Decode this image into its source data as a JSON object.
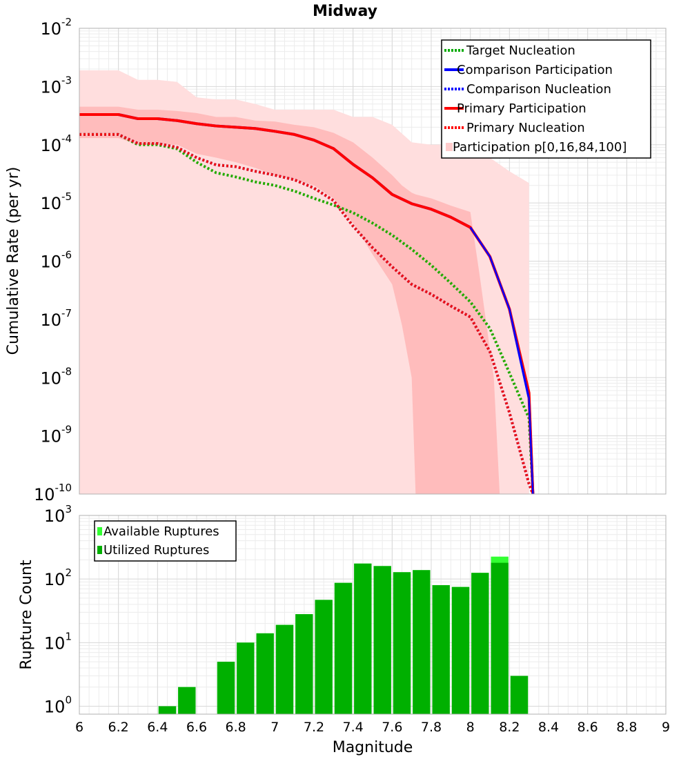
{
  "chart_data": [
    {
      "type": "line",
      "title": "Midway",
      "xlabel": "",
      "ylabel": "Cumulative Rate (per yr)",
      "xlim": [
        6,
        9
      ],
      "ylim": [
        1e-10,
        0.01
      ],
      "yscale": "log",
      "y_tick_labels": [
        {
          "base": "10",
          "exp": "-10",
          "value": 1e-10
        },
        {
          "base": "10",
          "exp": "-9",
          "value": 1e-09
        },
        {
          "base": "10",
          "exp": "-8",
          "value": 1e-08
        },
        {
          "base": "10",
          "exp": "-7",
          "value": 1e-07
        },
        {
          "base": "10",
          "exp": "-6",
          "value": 1e-06
        },
        {
          "base": "10",
          "exp": "-5",
          "value": 1e-05
        },
        {
          "base": "10",
          "exp": "-4",
          "value": 0.0001
        },
        {
          "base": "10",
          "exp": "-3",
          "value": 0.001
        },
        {
          "base": "10",
          "exp": "-2",
          "value": 0.01
        }
      ],
      "grid": true,
      "legend_position": "top-right",
      "legend": [
        {
          "label": "Target Nucleation",
          "color": "#00aa00",
          "style": "dotted"
        },
        {
          "label": "Comparison Participation",
          "color": "#0000ff",
          "style": "solid"
        },
        {
          "label": "Comparison Nucleation",
          "color": "#0000ff",
          "style": "dotted"
        },
        {
          "label": "Primary Participation",
          "color": "#ff0000",
          "style": "solid"
        },
        {
          "label": "Primary Nucleation",
          "color": "#ff0000",
          "style": "dotted"
        },
        {
          "label": "Participation p[0,16,84,100]",
          "color": "#ffcccc",
          "style": "fill"
        }
      ],
      "bands": [
        {
          "name": "p0-p100",
          "color": "#ffdede",
          "x": [
            6.0,
            6.2,
            6.3,
            6.4,
            6.5,
            6.6,
            6.7,
            6.8,
            6.9,
            7.0,
            7.1,
            7.2,
            7.3,
            7.4,
            7.5,
            7.6,
            7.7,
            7.8,
            7.9,
            8.0,
            8.1,
            8.2,
            8.3
          ],
          "lower": [
            1e-10,
            1e-10,
            1e-10,
            1e-10,
            1e-10,
            1e-10,
            1e-10,
            1e-10,
            1e-10,
            1e-10,
            1e-10,
            1e-10,
            1e-10,
            1e-10,
            1e-10,
            1e-10,
            1e-10,
            1e-10,
            1e-10,
            1e-10,
            1e-10,
            1e-10,
            1e-10
          ],
          "upper": [
            0.0019,
            0.0019,
            0.0013,
            0.0013,
            0.0012,
            0.00065,
            0.0006,
            0.0006,
            0.0005,
            0.0004,
            0.0004,
            0.0004,
            0.0004,
            0.0003,
            0.0003,
            0.00022,
            0.00011,
            0.0001,
            0.0001,
            0.0001,
            6e-05,
            3.5e-05,
            2.2e-05
          ]
        },
        {
          "name": "p16-p84",
          "color": "#ffbcbc",
          "x": [
            6.0,
            6.2,
            6.3,
            6.4,
            6.5,
            6.6,
            6.7,
            6.8,
            6.9,
            7.0,
            7.1,
            7.2,
            7.3,
            7.4,
            7.5,
            7.6,
            7.65,
            7.7,
            7.72,
            7.8,
            7.9,
            8.0,
            8.05,
            8.12,
            8.15
          ],
          "lower": [
            0.00013,
            0.00013,
            0.0001,
            0.0001,
            0.0001,
            7e-05,
            6e-05,
            5e-05,
            4e-05,
            3e-05,
            2.5e-05,
            2e-05,
            1.2e-05,
            4.5e-06,
            1.3e-06,
            4e-07,
            8e-08,
            1e-08,
            1e-10,
            1e-10,
            1e-10,
            1e-10,
            1e-10,
            1e-10,
            1e-10
          ],
          "upper": [
            0.00045,
            0.00045,
            0.0004,
            0.0004,
            0.00038,
            0.00035,
            0.0003,
            0.0003,
            0.00026,
            0.00025,
            0.00022,
            0.0002,
            0.00016,
            0.00011,
            6e-05,
            3e-05,
            2e-05,
            1.5e-05,
            1.4e-05,
            1.2e-05,
            9e-06,
            7e-06,
            5e-07,
            1e-08,
            1e-10
          ]
        }
      ],
      "series": [
        {
          "name": "Target Nucleation",
          "color": "#22aa00",
          "style": "dotted",
          "x": [
            6.0,
            6.2,
            6.3,
            6.4,
            6.5,
            6.6,
            6.7,
            6.8,
            6.9,
            7.0,
            7.1,
            7.2,
            7.3,
            7.4,
            7.5,
            7.6,
            7.7,
            7.8,
            7.9,
            8.0,
            8.1,
            8.2,
            8.3,
            8.32
          ],
          "y": [
            0.00015,
            0.00015,
            0.0001,
            0.0001,
            8.5e-05,
            5e-05,
            3.3e-05,
            2.8e-05,
            2.3e-05,
            2e-05,
            1.6e-05,
            1.2e-05,
            9.2e-06,
            6.8e-06,
            4.5e-06,
            2.8e-06,
            1.6e-06,
            8.5e-07,
            4.2e-07,
            2e-07,
            7e-08,
            1.2e-08,
            2e-09,
            1e-10
          ]
        },
        {
          "name": "Comparison Participation",
          "color": "#0000ff",
          "style": "solid",
          "x": [
            6.0,
            6.2,
            6.3,
            6.4,
            6.5,
            6.6,
            6.7,
            6.8,
            6.9,
            7.0,
            7.1,
            7.2,
            7.3,
            7.4,
            7.5,
            7.6,
            7.7,
            7.8,
            7.9,
            8.0,
            8.1,
            8.2,
            8.3,
            8.32
          ],
          "y": [
            0.00033,
            0.00033,
            0.00028,
            0.00028,
            0.00026,
            0.00023,
            0.00021,
            0.0002,
            0.00019,
            0.00017,
            0.00015,
            0.00012,
            8.6e-05,
            4.6e-05,
            2.7e-05,
            1.4e-05,
            9.7e-06,
            7.8e-06,
            5.7e-06,
            3.8e-06,
            1.2e-06,
            1.5e-07,
            4.5e-09,
            1e-10
          ]
        },
        {
          "name": "Comparison Nucleation",
          "color": "#0000ff",
          "style": "dotted",
          "x": [
            6.0,
            6.2,
            6.3,
            6.4,
            6.5,
            6.6,
            6.7,
            6.8,
            6.9,
            7.0,
            7.1,
            7.2,
            7.3,
            7.4,
            7.5,
            7.6,
            7.7,
            7.8,
            7.9,
            8.0,
            8.1,
            8.2,
            8.3,
            8.32
          ],
          "y": [
            0.00015,
            0.00015,
            0.000105,
            0.000105,
            9e-05,
            6e-05,
            4.5e-05,
            4.2e-05,
            3.5e-05,
            3e-05,
            2.5e-05,
            1.8e-05,
            1.1e-05,
            4e-06,
            1.7e-06,
            8e-07,
            4e-07,
            2.7e-07,
            1.7e-07,
            1.1e-07,
            2.8e-08,
            2.5e-09,
            1.5e-10,
            1e-10
          ]
        },
        {
          "name": "Primary Participation",
          "color": "#ff0000",
          "style": "solid",
          "x": [
            6.0,
            6.2,
            6.3,
            6.4,
            6.5,
            6.6,
            6.7,
            6.8,
            6.9,
            7.0,
            7.1,
            7.2,
            7.3,
            7.4,
            7.5,
            7.6,
            7.7,
            7.8,
            7.9,
            8.0,
            8.1,
            8.2,
            8.3,
            8.32
          ],
          "y": [
            0.00033,
            0.00033,
            0.00028,
            0.00028,
            0.00026,
            0.00023,
            0.00021,
            0.0002,
            0.00019,
            0.00017,
            0.00015,
            0.00012,
            8.6e-05,
            4.6e-05,
            2.7e-05,
            1.4e-05,
            9.7e-06,
            7.8e-06,
            5.7e-06,
            3.8e-06,
            1.2e-06,
            1.5e-07,
            5.5e-09,
            1e-10
          ]
        },
        {
          "name": "Primary Nucleation",
          "color": "#ee1111",
          "style": "dotted",
          "x": [
            6.0,
            6.2,
            6.3,
            6.4,
            6.5,
            6.6,
            6.7,
            6.8,
            6.9,
            7.0,
            7.1,
            7.2,
            7.3,
            7.4,
            7.5,
            7.6,
            7.7,
            7.8,
            7.9,
            8.0,
            8.1,
            8.2,
            8.3,
            8.32
          ],
          "y": [
            0.00015,
            0.00015,
            0.000105,
            0.000105,
            9e-05,
            6e-05,
            4.5e-05,
            4.2e-05,
            3.5e-05,
            3e-05,
            2.5e-05,
            1.8e-05,
            1.1e-05,
            4e-06,
            1.7e-06,
            8e-07,
            4e-07,
            2.7e-07,
            1.7e-07,
            1.1e-07,
            2.8e-08,
            2.5e-09,
            1.5e-10,
            1e-10
          ]
        }
      ]
    },
    {
      "type": "bar",
      "title": "",
      "xlabel": "Magnitude",
      "ylabel": "Rupture Count",
      "xlim": [
        6,
        9
      ],
      "ylim": [
        0.75,
        1000
      ],
      "yscale": "log",
      "x_tick_labels": [
        "6",
        "6.2",
        "6.4",
        "6.6",
        "6.8",
        "7",
        "7.2",
        "7.4",
        "7.6",
        "7.8",
        "8",
        "8.2",
        "8.4",
        "8.6",
        "8.8",
        "9"
      ],
      "y_tick_labels": [
        {
          "base": "10",
          "exp": "0",
          "value": 1
        },
        {
          "base": "10",
          "exp": "1",
          "value": 10
        },
        {
          "base": "10",
          "exp": "2",
          "value": 100
        },
        {
          "base": "10",
          "exp": "3",
          "value": 1000
        }
      ],
      "grid": true,
      "legend_position": "top-left",
      "bin_width": 0.1,
      "legend": [
        {
          "label": "Available Ruptures",
          "color": "#33ff33"
        },
        {
          "label": "Utilized Ruptures",
          "color": "#00b000"
        }
      ],
      "series": [
        {
          "name": "Available Ruptures",
          "color": "#33ff33",
          "x": [
            6.45,
            6.55,
            6.75,
            6.85,
            6.95,
            7.05,
            7.15,
            7.25,
            7.35,
            7.45,
            7.55,
            7.65,
            7.75,
            7.85,
            7.95,
            8.05,
            8.15,
            8.25
          ],
          "values": [
            1,
            2,
            5,
            10,
            14,
            19,
            28,
            47,
            87,
            175,
            160,
            128,
            138,
            80,
            75,
            125,
            225,
            3
          ]
        },
        {
          "name": "Utilized Ruptures",
          "color": "#00b000",
          "x": [
            6.45,
            6.55,
            6.75,
            6.85,
            6.95,
            7.05,
            7.15,
            7.25,
            7.35,
            7.45,
            7.55,
            7.65,
            7.75,
            7.85,
            7.95,
            8.05,
            8.15,
            8.25
          ],
          "values": [
            1,
            2,
            5,
            10,
            14,
            19,
            28,
            47,
            87,
            175,
            160,
            128,
            138,
            80,
            75,
            125,
            180,
            3
          ]
        }
      ]
    }
  ]
}
